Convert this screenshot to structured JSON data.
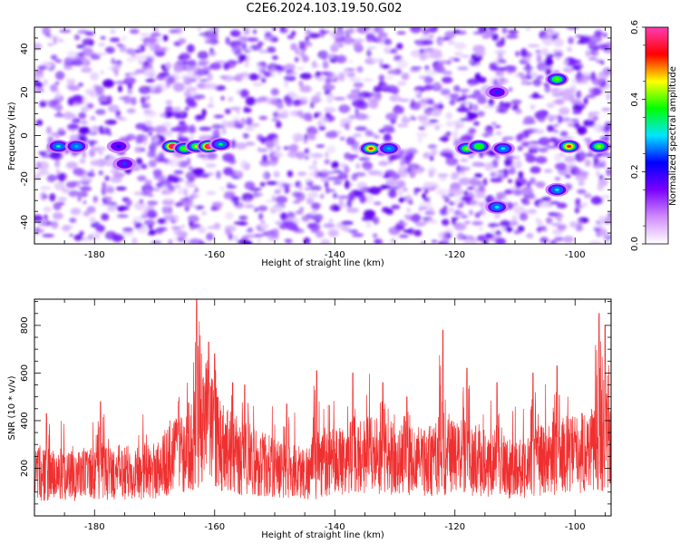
{
  "title": "C2E6.2024.103.19.50.G02",
  "chart_data": [
    {
      "type": "heatmap",
      "xlabel": "Height of straight line (km)",
      "ylabel": "Frequency (Hz)",
      "xlim": [
        -190,
        -94
      ],
      "ylim": [
        -50,
        50
      ],
      "x_ticks": [
        -180,
        -160,
        -140,
        -120,
        -100
      ],
      "y_ticks": [
        -40,
        -20,
        0,
        20,
        40
      ],
      "colorbar": {
        "label": "Normalized spectral amplitude",
        "range": [
          0,
          0.6
        ],
        "ticks": [
          "0.0",
          "0.2",
          "0.4",
          "0.6"
        ],
        "colors": [
          "#ffffff",
          "#d08cff",
          "#7a00ff",
          "#0000ff",
          "#00e5ff",
          "#00ff00",
          "#ffff00",
          "#ff0000",
          "#ff3cb4"
        ]
      },
      "hotspots": [
        {
          "x": -186,
          "y": -5,
          "value": 0.32
        },
        {
          "x": -183,
          "y": -5,
          "value": 0.28
        },
        {
          "x": -176,
          "y": -5,
          "value": 0.22
        },
        {
          "x": -175,
          "y": -13,
          "value": 0.25
        },
        {
          "x": -167,
          "y": -5,
          "value": 0.56
        },
        {
          "x": -165,
          "y": -6,
          "value": 0.4
        },
        {
          "x": -163,
          "y": -5,
          "value": 0.45
        },
        {
          "x": -161,
          "y": -5,
          "value": 0.58
        },
        {
          "x": -159,
          "y": -4,
          "value": 0.35
        },
        {
          "x": -134,
          "y": -6,
          "value": 0.55
        },
        {
          "x": -131,
          "y": -6,
          "value": 0.28
        },
        {
          "x": -118,
          "y": -6,
          "value": 0.42
        },
        {
          "x": -116,
          "y": -5,
          "value": 0.38
        },
        {
          "x": -113,
          "y": -33,
          "value": 0.3
        },
        {
          "x": -112,
          "y": -6,
          "value": 0.3
        },
        {
          "x": -103,
          "y": 26,
          "value": 0.4
        },
        {
          "x": -103,
          "y": -25,
          "value": 0.3
        },
        {
          "x": -101,
          "y": -5,
          "value": 0.52
        },
        {
          "x": -96,
          "y": -5,
          "value": 0.42
        },
        {
          "x": -113,
          "y": 20,
          "value": 0.24
        }
      ]
    },
    {
      "type": "line",
      "xlabel": "Height of straight line (km)",
      "ylabel": "SNR (10 * v/v)",
      "xlim": [
        -190,
        -94
      ],
      "ylim": [
        0,
        910
      ],
      "x_ticks": [
        -180,
        -160,
        -140,
        -120,
        -100
      ],
      "y_ticks": [
        200,
        400,
        600,
        800
      ],
      "color": "#f03030",
      "baseline": [
        [
          -190,
          170
        ],
        [
          -176,
          180
        ],
        [
          -170,
          190
        ],
        [
          -166,
          260
        ],
        [
          -163,
          320
        ],
        [
          -161,
          380
        ],
        [
          -159,
          300
        ],
        [
          -156,
          250
        ],
        [
          -150,
          200
        ],
        [
          -145,
          180
        ],
        [
          -140,
          230
        ],
        [
          -135,
          260
        ],
        [
          -130,
          240
        ],
        [
          -125,
          230
        ],
        [
          -120,
          250
        ],
        [
          -115,
          230
        ],
        [
          -110,
          200
        ],
        [
          -105,
          240
        ],
        [
          -100,
          260
        ],
        [
          -96,
          300
        ],
        [
          -94,
          270
        ]
      ],
      "peaks": [
        {
          "x": -163,
          "y": 910
        },
        {
          "x": -161,
          "y": 730
        },
        {
          "x": -160,
          "y": 680
        },
        {
          "x": -166,
          "y": 480
        },
        {
          "x": -157,
          "y": 560
        },
        {
          "x": -155,
          "y": 550
        },
        {
          "x": -143,
          "y": 610
        },
        {
          "x": -137,
          "y": 600
        },
        {
          "x": -132,
          "y": 560
        },
        {
          "x": -122,
          "y": 780
        },
        {
          "x": -118,
          "y": 620
        },
        {
          "x": -113,
          "y": 560
        },
        {
          "x": -107,
          "y": 600
        },
        {
          "x": -103,
          "y": 630
        },
        {
          "x": -96,
          "y": 850
        },
        {
          "x": -95,
          "y": 800
        },
        {
          "x": -188,
          "y": 430
        },
        {
          "x": -179,
          "y": 480
        },
        {
          "x": -148,
          "y": 470
        },
        {
          "x": -128,
          "y": 500
        }
      ]
    }
  ]
}
